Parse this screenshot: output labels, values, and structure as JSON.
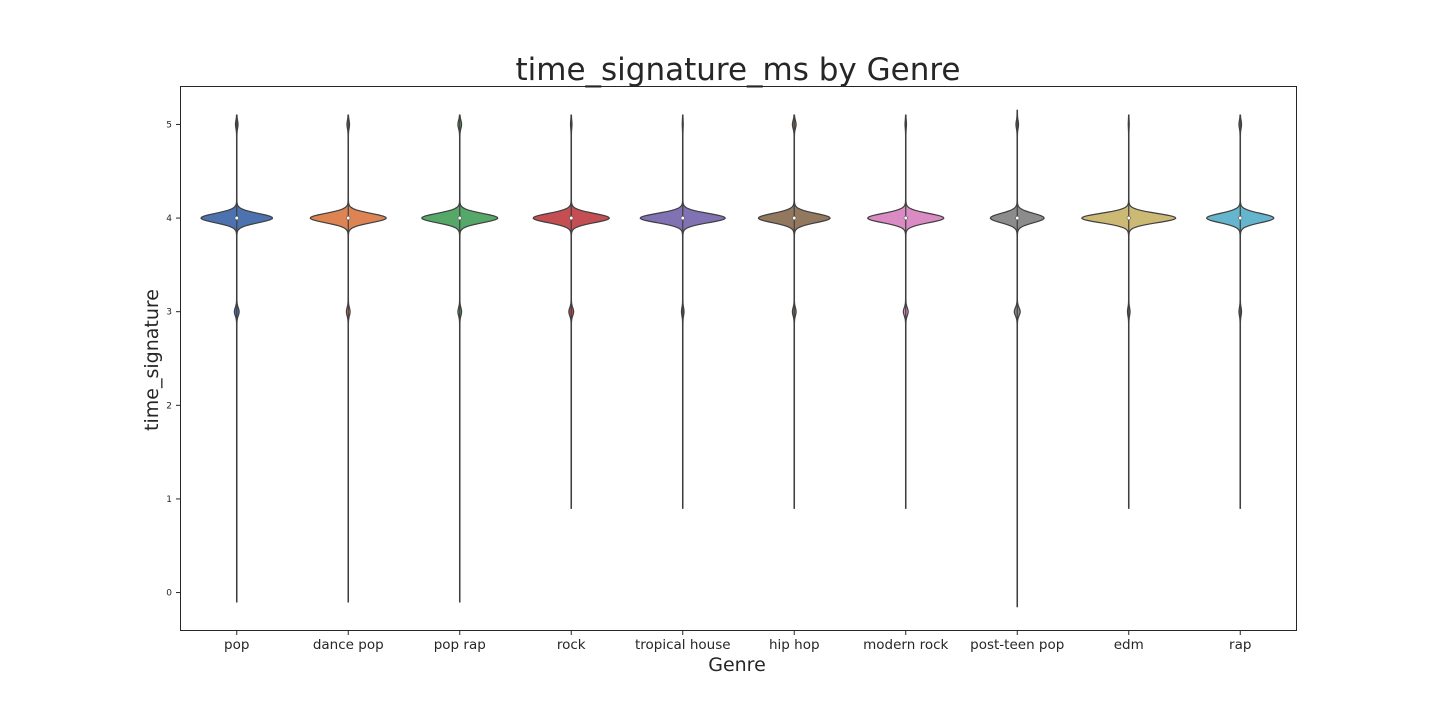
{
  "chart_data": {
    "type": "violin",
    "title": "time_signature_ms by Genre",
    "xlabel": "Genre",
    "ylabel": "time_signature",
    "ylim": [
      -0.4,
      5.4
    ],
    "yticks": [
      0,
      1,
      2,
      3,
      4,
      5
    ],
    "grid": false,
    "legend": "none",
    "categories": [
      "pop",
      "dance pop",
      "pop rap",
      "rock",
      "tropical house",
      "hip hop",
      "modern rock",
      "post-teen pop",
      "edm",
      "rap"
    ],
    "colors": [
      "#4c72b0",
      "#dd8452",
      "#55a868",
      "#c44e52",
      "#8172b3",
      "#937860",
      "#da8bc3",
      "#8c8c8c",
      "#ccb974",
      "#64b5cd"
    ],
    "violins": [
      {
        "genre": "pop",
        "median": 4,
        "min": -0.1,
        "max": 5.1,
        "peak_4_halfwidth": 0.32,
        "bump_3_halfwidth": 0.02,
        "bump_5_halfwidth": 0.01
      },
      {
        "genre": "dance pop",
        "median": 4,
        "min": -0.1,
        "max": 5.1,
        "peak_4_halfwidth": 0.34,
        "bump_3_halfwidth": 0.015,
        "bump_5_halfwidth": 0.01
      },
      {
        "genre": "pop rap",
        "median": 4,
        "min": -0.1,
        "max": 5.1,
        "peak_4_halfwidth": 0.34,
        "bump_3_halfwidth": 0.015,
        "bump_5_halfwidth": 0.015
      },
      {
        "genre": "rock",
        "median": 4,
        "min": 0.9,
        "max": 5.1,
        "peak_4_halfwidth": 0.34,
        "bump_3_halfwidth": 0.02,
        "bump_5_halfwidth": 0.005
      },
      {
        "genre": "tropical house",
        "median": 4,
        "min": 0.9,
        "max": 5.1,
        "peak_4_halfwidth": 0.38,
        "bump_3_halfwidth": 0.01,
        "bump_5_halfwidth": 0.003
      },
      {
        "genre": "hip hop",
        "median": 4,
        "min": 0.9,
        "max": 5.1,
        "peak_4_halfwidth": 0.32,
        "bump_3_halfwidth": 0.015,
        "bump_5_halfwidth": 0.015
      },
      {
        "genre": "modern rock",
        "median": 4,
        "min": 0.9,
        "max": 5.1,
        "peak_4_halfwidth": 0.34,
        "bump_3_halfwidth": 0.02,
        "bump_5_halfwidth": 0.005
      },
      {
        "genre": "post-teen pop",
        "median": 4,
        "min": -0.15,
        "max": 5.15,
        "peak_4_halfwidth": 0.24,
        "bump_3_halfwidth": 0.025,
        "bump_5_halfwidth": 0.01
      },
      {
        "genre": "edm",
        "median": 4,
        "min": 0.9,
        "max": 5.1,
        "peak_4_halfwidth": 0.42,
        "bump_3_halfwidth": 0.01,
        "bump_5_halfwidth": 0.003
      },
      {
        "genre": "rap",
        "median": 4,
        "min": 0.9,
        "max": 5.1,
        "peak_4_halfwidth": 0.3,
        "bump_3_halfwidth": 0.01,
        "bump_5_halfwidth": 0.01
      }
    ]
  }
}
